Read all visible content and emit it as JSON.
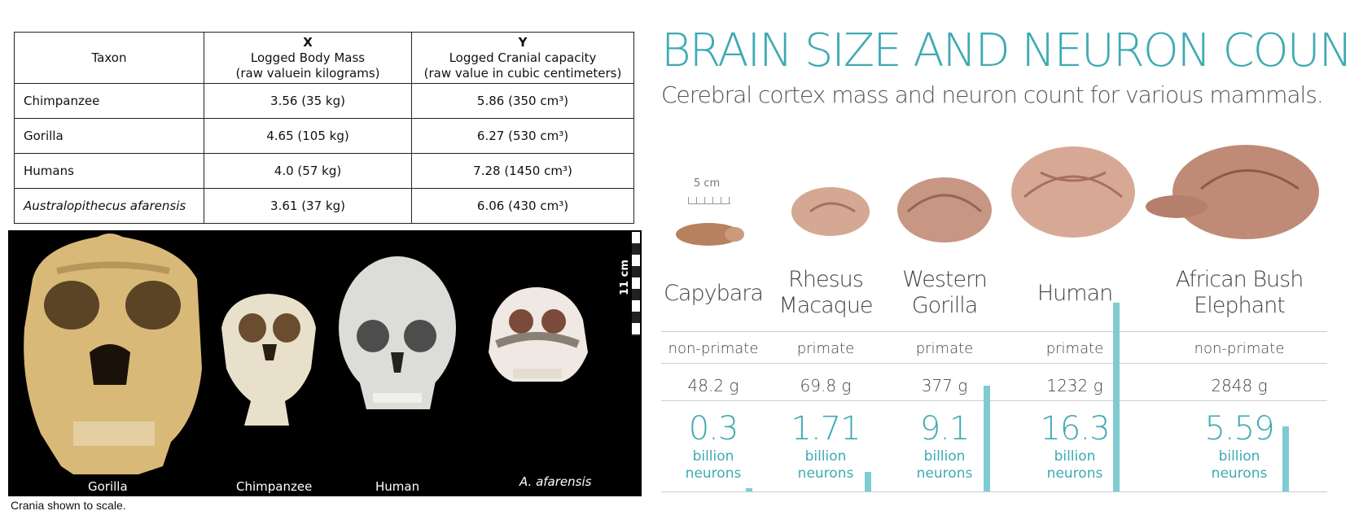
{
  "table": {
    "headers": [
      {
        "var": "",
        "label": "Taxon",
        "sub": ""
      },
      {
        "var": "X",
        "label": "Logged Body Mass",
        "sub": "(raw valuein kilograms)"
      },
      {
        "var": "Y",
        "label": "Logged Cranial capacity",
        "sub": "(raw value in cubic centimeters)"
      }
    ],
    "rows": [
      {
        "taxon": "Chimpanzee",
        "x": "3.56 (35 kg)",
        "y": "5.86 (350 cm³)"
      },
      {
        "taxon": "Gorilla",
        "x": "4.65 (105 kg)",
        "y": "6.27 (530 cm³)"
      },
      {
        "taxon": "Humans",
        "x": "4.0 (57 kg)",
        "y": "7.28 (1450 cm³)"
      },
      {
        "taxon": "Australopithecus afarensis",
        "x": "3.61 (37 kg)",
        "y": "6.06 (430 cm³)"
      }
    ]
  },
  "skulls": {
    "labels": [
      "Gorilla",
      "Chimpanzee",
      "Human",
      "A. afarensis"
    ],
    "scale_label": "11 cm",
    "caption": "Crania shown to scale."
  },
  "infographic": {
    "title": "BRAIN SIZE AND NEURON COUNT",
    "subtitle": "Cerebral cortex mass and neuron count for various mammals.",
    "scale_label": "5 cm",
    "accent": "#3eaab3",
    "animals": [
      {
        "name1": "Capybara",
        "name2": "",
        "class": "non-primate",
        "mass": "48.2 g",
        "neurons": "0.3",
        "unit1": "billion",
        "unit2": "neurons",
        "neuron_billions": 0.3
      },
      {
        "name1": "Rhesus",
        "name2": "Macaque",
        "class": "primate",
        "mass": "69.8 g",
        "neurons": "1.71",
        "unit1": "billion",
        "unit2": "neurons",
        "neuron_billions": 1.71
      },
      {
        "name1": "Western",
        "name2": "Gorilla",
        "class": "primate",
        "mass": "377 g",
        "neurons": "9.1",
        "unit1": "billion",
        "unit2": "neurons",
        "neuron_billions": 9.1
      },
      {
        "name1": "Human",
        "name2": "",
        "class": "primate",
        "mass": "1232 g",
        "neurons": "16.3",
        "unit1": "billion",
        "unit2": "neurons",
        "neuron_billions": 16.3
      },
      {
        "name1": "African Bush",
        "name2": "Elephant",
        "class": "non-primate",
        "mass": "2848 g",
        "neurons": "5.59",
        "unit1": "billion",
        "unit2": "neurons",
        "neuron_billions": 5.59
      }
    ]
  }
}
